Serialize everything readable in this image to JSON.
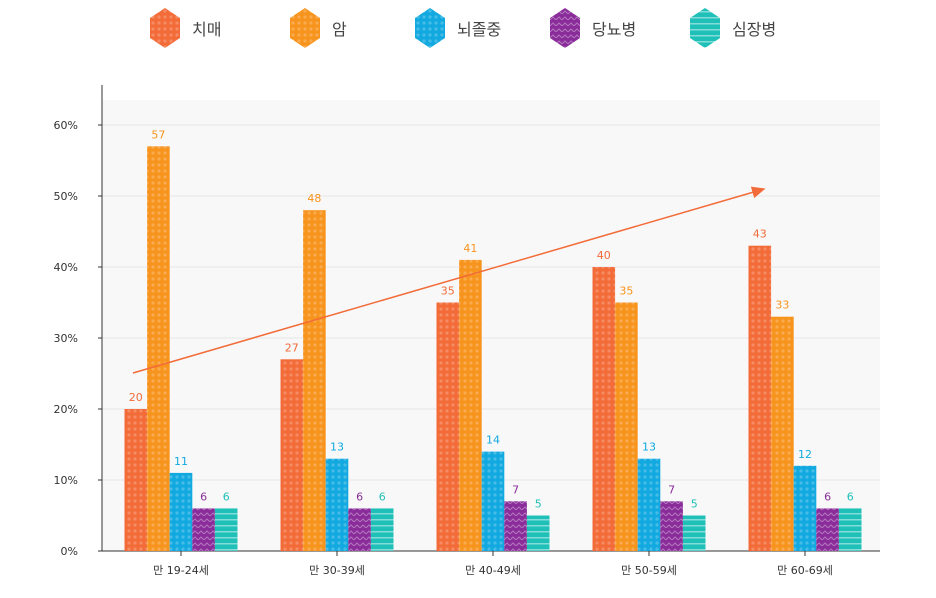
{
  "chart_data": {
    "type": "bar",
    "categories": [
      "만 19-24세",
      "만 30-39세",
      "만 40-49세",
      "만 50-59세",
      "만 60-69세"
    ],
    "series": [
      {
        "name": "치매",
        "color": "#f26b38",
        "values": [
          20,
          27,
          35,
          40,
          43
        ]
      },
      {
        "name": "암",
        "color": "#f7941d",
        "values": [
          57,
          48,
          41,
          35,
          33
        ]
      },
      {
        "name": "뇌졸중",
        "color": "#12a9e0",
        "values": [
          11,
          13,
          14,
          13,
          12
        ]
      },
      {
        "name": "당뇨병",
        "color": "#8a2d9a",
        "values": [
          6,
          6,
          7,
          7,
          6
        ]
      },
      {
        "name": "심장병",
        "color": "#1fc0b8",
        "values": [
          6,
          6,
          5,
          5,
          6
        ]
      }
    ],
    "yticks": [
      "0%",
      "10%",
      "20%",
      "30%",
      "40%",
      "50%",
      "60%"
    ],
    "ylim": [
      0,
      60
    ],
    "grid": true,
    "legend": "top",
    "annotation": "upward trend arrow"
  }
}
